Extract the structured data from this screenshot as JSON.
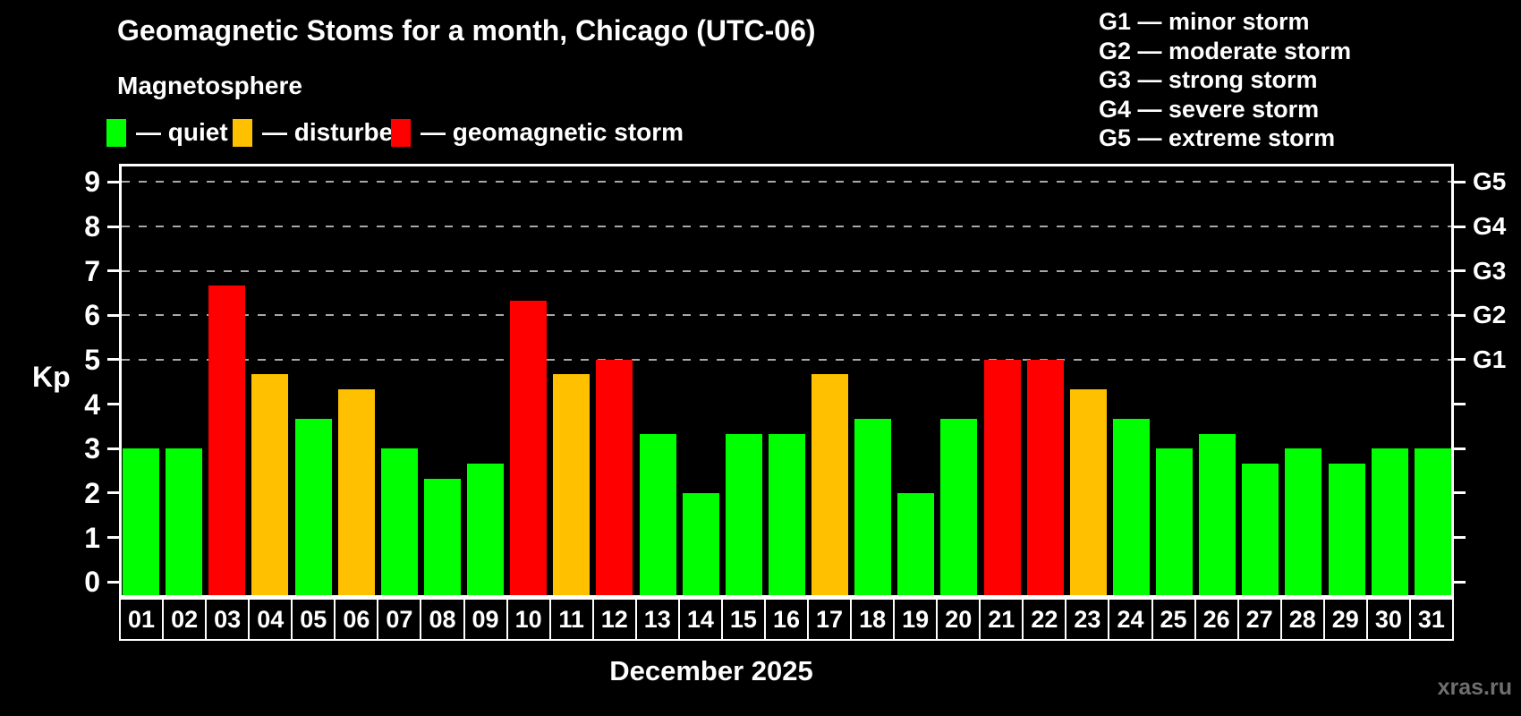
{
  "header": {
    "title": "Geomagnetic Stoms for a month, Chicago (UTC-06)",
    "subtitle": "Magnetosphere"
  },
  "legend": {
    "items": [
      {
        "key": "quiet",
        "label": "— quiet"
      },
      {
        "key": "disturbed",
        "label": "— disturbed"
      },
      {
        "key": "storm",
        "label": "— geomagnetic storm"
      }
    ]
  },
  "g_legend_lines": [
    "G1 — minor storm",
    "G2 — moderate storm",
    "G3 — strong storm",
    "G4 — severe storm",
    "G5 — extreme storm"
  ],
  "axis": {
    "y_label": "Kp",
    "y_ticks": [
      0,
      1,
      2,
      3,
      4,
      5,
      6,
      7,
      8,
      9
    ],
    "right_labels": [
      {
        "kp": 5,
        "label": "G1"
      },
      {
        "kp": 6,
        "label": "G2"
      },
      {
        "kp": 7,
        "label": "G3"
      },
      {
        "kp": 8,
        "label": "G4"
      },
      {
        "kp": 9,
        "label": "G5"
      }
    ],
    "x_label": "December 2025"
  },
  "watermark": "xras.ru",
  "colors": {
    "quiet": "#00ff00",
    "disturbed": "#ffc000",
    "storm": "#ff0000",
    "background": "#000000",
    "frame": "#ffffff",
    "grid": "#a8a8a8",
    "watermark": "#6f6f6f"
  },
  "chart_data": {
    "type": "bar",
    "title": "Geomagnetic Stoms for a month, Chicago (UTC-06)",
    "xlabel": "December 2025",
    "ylabel": "Kp",
    "ylim": [
      0,
      9
    ],
    "grid": "horizontal dashed lines at Kp 5,6,7,8,9",
    "legend_position": "top-left (Magnetosphere) and top-right (G-scale)",
    "categories": [
      "01",
      "02",
      "03",
      "04",
      "05",
      "06",
      "07",
      "08",
      "09",
      "10",
      "11",
      "12",
      "13",
      "14",
      "15",
      "16",
      "17",
      "18",
      "19",
      "20",
      "21",
      "22",
      "23",
      "24",
      "25",
      "26",
      "27",
      "28",
      "29",
      "30",
      "31"
    ],
    "values": [
      3.0,
      3.0,
      6.67,
      4.67,
      3.67,
      4.33,
      3.0,
      2.33,
      2.67,
      6.33,
      4.67,
      5.0,
      3.33,
      2.0,
      3.33,
      3.33,
      4.67,
      3.67,
      2.0,
      3.67,
      5.0,
      5.0,
      4.33,
      3.67,
      3.0,
      3.33,
      2.67,
      3.0,
      2.67,
      3.0,
      3.0
    ],
    "statuses": [
      "quiet",
      "quiet",
      "storm",
      "disturbed",
      "quiet",
      "disturbed",
      "quiet",
      "quiet",
      "quiet",
      "storm",
      "disturbed",
      "storm",
      "quiet",
      "quiet",
      "quiet",
      "quiet",
      "disturbed",
      "quiet",
      "quiet",
      "quiet",
      "storm",
      "storm",
      "disturbed",
      "quiet",
      "quiet",
      "quiet",
      "quiet",
      "quiet",
      "quiet",
      "quiet",
      "quiet"
    ]
  }
}
